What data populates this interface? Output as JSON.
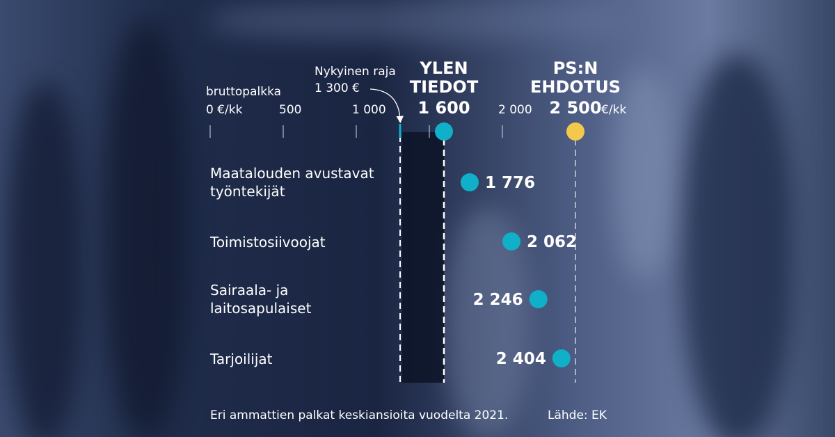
{
  "colors": {
    "teal": "#0fb0c8",
    "yellow": "#f2c94c",
    "text": "#ffffff",
    "panel": "#0d1428"
  },
  "chart_data": {
    "type": "scatter",
    "unit_label": "bruttopalkka",
    "x_ticks": [
      {
        "value": 0,
        "label": "0 €/kk"
      },
      {
        "value": 500,
        "label": "500"
      },
      {
        "value": 1000,
        "label": "1 000"
      },
      {
        "value": 2000,
        "label": "2 000"
      }
    ],
    "xlim": [
      0,
      2600
    ],
    "markers": [
      {
        "name_lines": [
          "Nykyinen raja",
          "1 300 €"
        ],
        "value": 1300,
        "kind": "current"
      },
      {
        "name_lines": [
          "YLEN",
          "TIEDOT"
        ],
        "value_label": "1 600",
        "value": 1600,
        "kind": "yle"
      },
      {
        "name_lines": [
          "PS:N",
          "EHDOTUS"
        ],
        "value_label": "2 500",
        "unit": "€/kk",
        "value": 2500,
        "kind": "ps"
      }
    ],
    "categories": [
      {
        "label_lines": [
          "Maatalouden avustavat",
          "työntekijät"
        ],
        "value": 1776,
        "value_label": "1 776"
      },
      {
        "label_lines": [
          "Toimistosiivoojat"
        ],
        "value": 2062,
        "value_label": "2 062"
      },
      {
        "label_lines": [
          "Sairaala- ja",
          "laitosapulaiset"
        ],
        "value": 2246,
        "value_label": "2 246"
      },
      {
        "label_lines": [
          "Tarjoilijat"
        ],
        "value": 2404,
        "value_label": "2 404"
      }
    ],
    "footnote": "Eri ammattien palkat keskiansioita vuodelta 2021.",
    "source": "Lähde: EK"
  }
}
